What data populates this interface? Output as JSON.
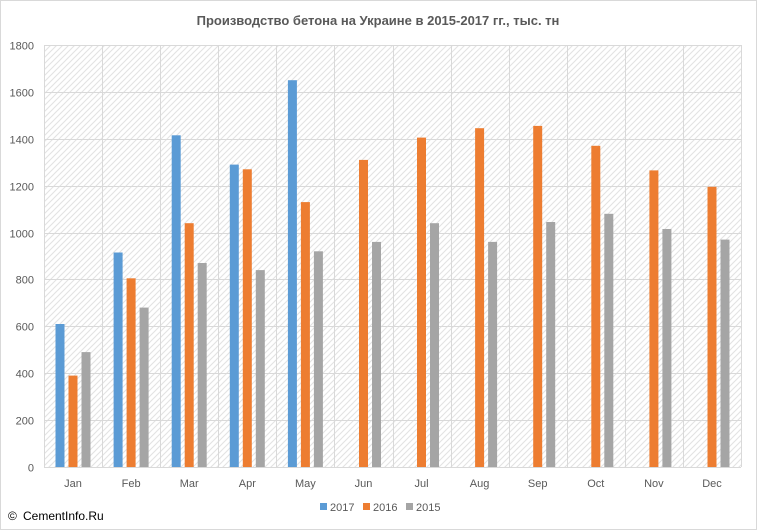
{
  "chart_data": {
    "type": "bar",
    "title": "Производство бетона на Украине в 2015-2017  гг., тыс. тн",
    "xlabel": "",
    "ylabel": "",
    "categories": [
      "Jan",
      "Feb",
      "Mar",
      "Apr",
      "May",
      "Jun",
      "Jul",
      "Aug",
      "Sep",
      "Oct",
      "Nov",
      "Dec"
    ],
    "ylim": [
      0,
      1800
    ],
    "yticks": [
      0,
      200,
      400,
      600,
      800,
      1000,
      1200,
      1400,
      1600,
      1800
    ],
    "grid": true,
    "legend_position": "bottom",
    "series": [
      {
        "name": "2017",
        "color": "#5B9BD5",
        "values": [
          610,
          915,
          1415,
          1290,
          1650,
          null,
          null,
          null,
          null,
          null,
          null,
          null
        ]
      },
      {
        "name": "2016",
        "color": "#ED7D31",
        "values": [
          390,
          805,
          1040,
          1270,
          1130,
          1310,
          1405,
          1445,
          1455,
          1370,
          1265,
          1195
        ]
      },
      {
        "name": "2015",
        "color": "#A5A5A5",
        "values": [
          490,
          680,
          870,
          840,
          920,
          960,
          1040,
          960,
          1045,
          1080,
          1015,
          970
        ]
      }
    ]
  },
  "watermark": {
    "text": "CementInfo.Ru",
    "symbol": "©"
  }
}
